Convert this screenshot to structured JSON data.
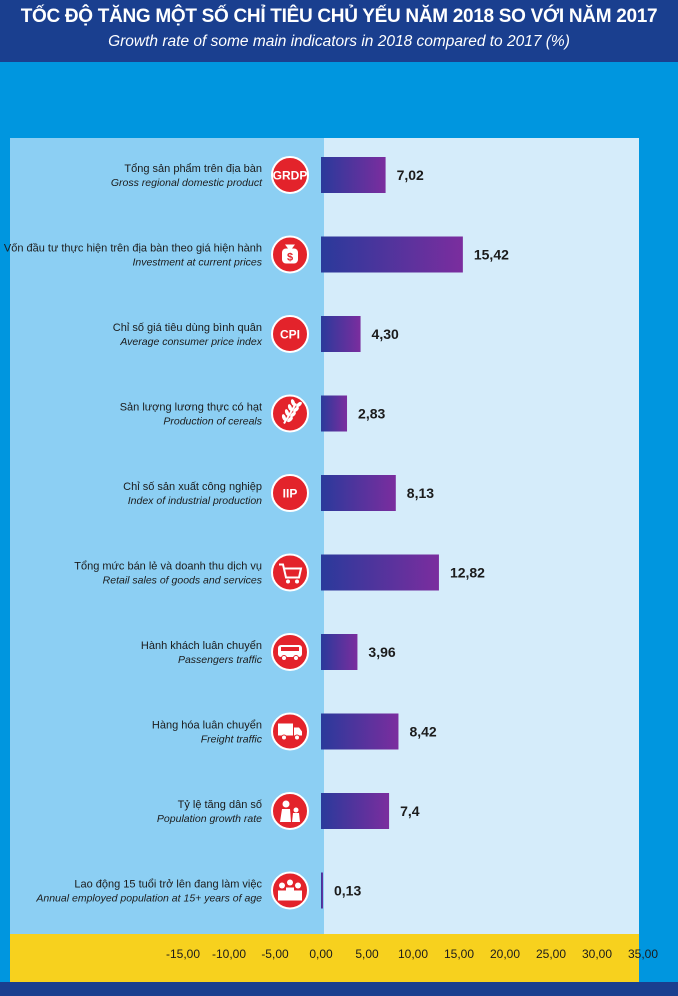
{
  "header": {
    "title": "TỐC ĐỘ TĂNG MỘT SỐ CHỈ TIÊU CHỦ YẾU NĂM 2018 SO VỚI NĂM 2017",
    "subtitle": "Growth rate of some main indicators in 2018 compared to 2017 (%)"
  },
  "colors": {
    "bar_start": "#2a3a9b",
    "bar_end": "#7b2d9e",
    "icon_red": "#e3232b",
    "negative_area": "#8ccff3",
    "positive_area": "#d5ecfa",
    "axis_band": "#f7d11e"
  },
  "chart_data": {
    "type": "bar",
    "orientation": "horizontal",
    "title": "",
    "xlim": [
      -15,
      35
    ],
    "x_ticks": [
      "-15,00",
      "-10,00",
      "-5,00",
      "0,00",
      "5,00",
      "10,00",
      "15,00",
      "20,00",
      "25,00",
      "30,00",
      "35,00"
    ],
    "grid": false,
    "items": [
      {
        "vi": "Tổng sản phẩm trên địa bàn",
        "en": "Gross regional domestic product",
        "value": 7.02,
        "label": "7,02",
        "icon": "grdp-icon",
        "icon_text": "GRDP"
      },
      {
        "vi": "Vốn đầu tư thực hiện trên địa bàn theo giá hiện hành",
        "en": "Investment at current prices",
        "value": 15.42,
        "label": "15,42",
        "icon": "money-bag-icon",
        "icon_text": "$"
      },
      {
        "vi": "Chỉ số giá tiêu dùng bình quân",
        "en": "Average consumer price index",
        "value": 4.3,
        "label": "4,30",
        "icon": "cpi-icon",
        "icon_text": "CPI"
      },
      {
        "vi": "Sản lượng lương thực có hạt",
        "en": "Production of cereals",
        "value": 2.83,
        "label": "2,83",
        "icon": "wheat-icon",
        "icon_text": ""
      },
      {
        "vi": "Chỉ số sản xuất công nghiệp",
        "en": "Index of industrial production",
        "value": 8.13,
        "label": "8,13",
        "icon": "iip-icon",
        "icon_text": "IIP"
      },
      {
        "vi": "Tổng mức bán lẻ và doanh thu dịch vụ",
        "en": "Retail sales of goods and services",
        "value": 12.82,
        "label": "12,82",
        "icon": "shopping-cart-icon",
        "icon_text": ""
      },
      {
        "vi": "Hành khách luân chuyển",
        "en": "Passengers traffic",
        "value": 3.96,
        "label": "3,96",
        "icon": "bus-icon",
        "icon_text": ""
      },
      {
        "vi": "Hàng hóa luân chuyển",
        "en": "Freight traffic",
        "value": 8.42,
        "label": "8,42",
        "icon": "truck-icon",
        "icon_text": ""
      },
      {
        "vi": "Tỷ lệ tăng dân số",
        "en": "Population growth rate",
        "value": 7.4,
        "label": "7,4",
        "icon": "family-icon",
        "icon_text": ""
      },
      {
        "vi": "Lao động 15 tuổi trở lên đang làm việc",
        "en": "Annual employed population at 15+ years of age",
        "value": 0.13,
        "label": "0,13",
        "icon": "workers-icon",
        "icon_text": ""
      }
    ]
  }
}
